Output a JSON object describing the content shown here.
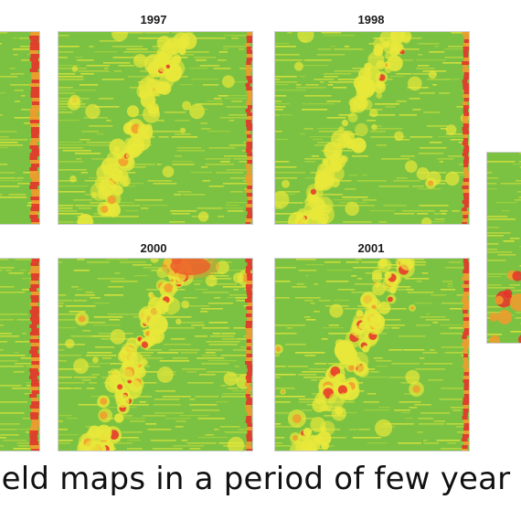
{
  "caption": "ield maps in a period of few year",
  "maps": [
    {
      "id": "left-top",
      "year": ""
    },
    {
      "id": "1997",
      "year": "1997"
    },
    {
      "id": "1998",
      "year": "1998"
    },
    {
      "id": "right-partial",
      "year": ""
    },
    {
      "id": "left-bottom",
      "year": ""
    },
    {
      "id": "2000",
      "year": "2000"
    },
    {
      "id": "2001",
      "year": "2001"
    }
  ],
  "colors": {
    "high_yield": "#7cc242",
    "medium_yield": "#e8e83a",
    "low_yield": "#e8322a",
    "mid_low_yield": "#f39a2c"
  }
}
